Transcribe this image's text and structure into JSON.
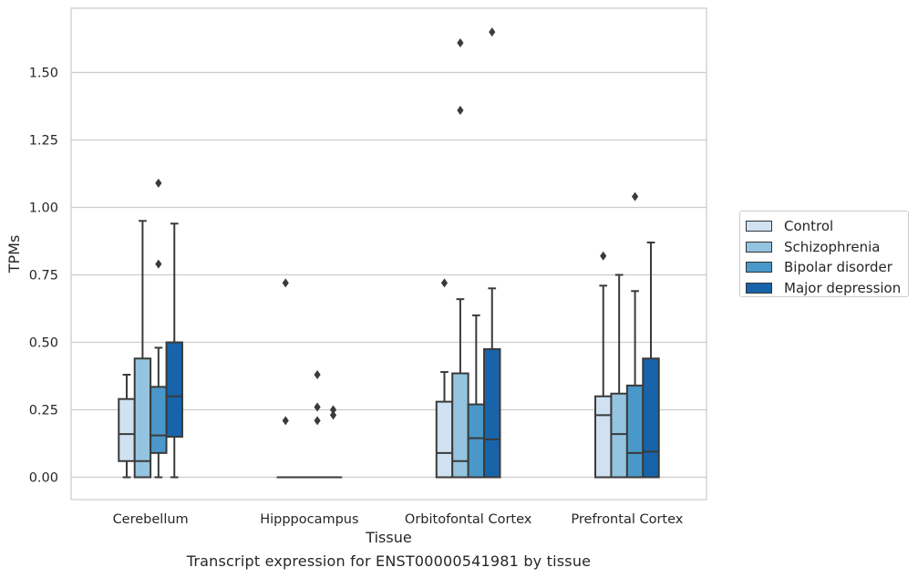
{
  "chart_data": {
    "type": "box",
    "xlabel": "Tissue",
    "ylabel": "TPMs",
    "caption": "Transcript expression for ENST00000541981 by tissue",
    "categories": [
      "Cerebellum",
      "Hipppocampus",
      "Orbitofontal Cortex",
      "Prefrontal Cortex"
    ],
    "ylim": [
      -0.08,
      1.76
    ],
    "yticks": [
      0.0,
      0.25,
      0.5,
      0.75,
      1.0,
      1.25,
      1.5
    ],
    "ytick_labels": [
      "0.00",
      "0.25",
      "0.50",
      "0.75",
      "1.00",
      "1.25",
      "1.50"
    ],
    "grid": "horizontal",
    "legend_position": "right",
    "series": [
      {
        "name": "Control",
        "color": "#d0e1f2",
        "boxes": [
          {
            "q1": 0.06,
            "median": 0.16,
            "q3": 0.29,
            "whisker_low": 0.0,
            "whisker_high": 0.38,
            "outliers": []
          },
          {
            "q1": 0.0,
            "median": 0.0,
            "q3": 0.0,
            "whisker_low": 0.0,
            "whisker_high": 0.0,
            "outliers": [
              0.72,
              0.21
            ]
          },
          {
            "q1": 0.0,
            "median": 0.09,
            "q3": 0.28,
            "whisker_low": 0.0,
            "whisker_high": 0.39,
            "outliers": [
              0.72
            ]
          },
          {
            "q1": 0.0,
            "median": 0.23,
            "q3": 0.3,
            "whisker_low": 0.0,
            "whisker_high": 0.71,
            "outliers": [
              0.82
            ]
          }
        ]
      },
      {
        "name": "Schizophrenia",
        "color": "#94c4df",
        "boxes": [
          {
            "q1": 0.0,
            "median": 0.06,
            "q3": 0.44,
            "whisker_low": 0.0,
            "whisker_high": 0.95,
            "outliers": []
          },
          {
            "q1": 0.0,
            "median": 0.0,
            "q3": 0.0,
            "whisker_low": 0.0,
            "whisker_high": 0.0,
            "outliers": []
          },
          {
            "q1": 0.0,
            "median": 0.06,
            "q3": 0.385,
            "whisker_low": 0.0,
            "whisker_high": 0.66,
            "outliers": [
              1.61,
              1.36
            ]
          },
          {
            "q1": 0.0,
            "median": 0.16,
            "q3": 0.31,
            "whisker_low": 0.0,
            "whisker_high": 0.75,
            "outliers": []
          }
        ]
      },
      {
        "name": "Bipolar disorder",
        "color": "#4a98c9",
        "boxes": [
          {
            "q1": 0.09,
            "median": 0.155,
            "q3": 0.335,
            "whisker_low": 0.0,
            "whisker_high": 0.48,
            "outliers": [
              1.09,
              0.79
            ]
          },
          {
            "q1": 0.0,
            "median": 0.0,
            "q3": 0.0,
            "whisker_low": 0.0,
            "whisker_high": 0.0,
            "outliers": [
              0.38,
              0.26,
              0.21
            ]
          },
          {
            "q1": 0.0,
            "median": 0.145,
            "q3": 0.27,
            "whisker_low": 0.0,
            "whisker_high": 0.6,
            "outliers": []
          },
          {
            "q1": 0.0,
            "median": 0.09,
            "q3": 0.34,
            "whisker_low": 0.0,
            "whisker_high": 0.69,
            "outliers": [
              1.04
            ]
          }
        ]
      },
      {
        "name": "Major depression",
        "color": "#1764ab",
        "boxes": [
          {
            "q1": 0.15,
            "median": 0.3,
            "q3": 0.5,
            "whisker_low": 0.0,
            "whisker_high": 0.94,
            "outliers": []
          },
          {
            "q1": 0.0,
            "median": 0.0,
            "q3": 0.0,
            "whisker_low": 0.0,
            "whisker_high": 0.0,
            "outliers": [
              0.25,
              0.23
            ]
          },
          {
            "q1": 0.0,
            "median": 0.14,
            "q3": 0.475,
            "whisker_low": 0.0,
            "whisker_high": 0.7,
            "outliers": [
              1.65
            ]
          },
          {
            "q1": 0.0,
            "median": 0.095,
            "q3": 0.44,
            "whisker_low": 0.0,
            "whisker_high": 0.87,
            "outliers": []
          }
        ]
      }
    ]
  }
}
